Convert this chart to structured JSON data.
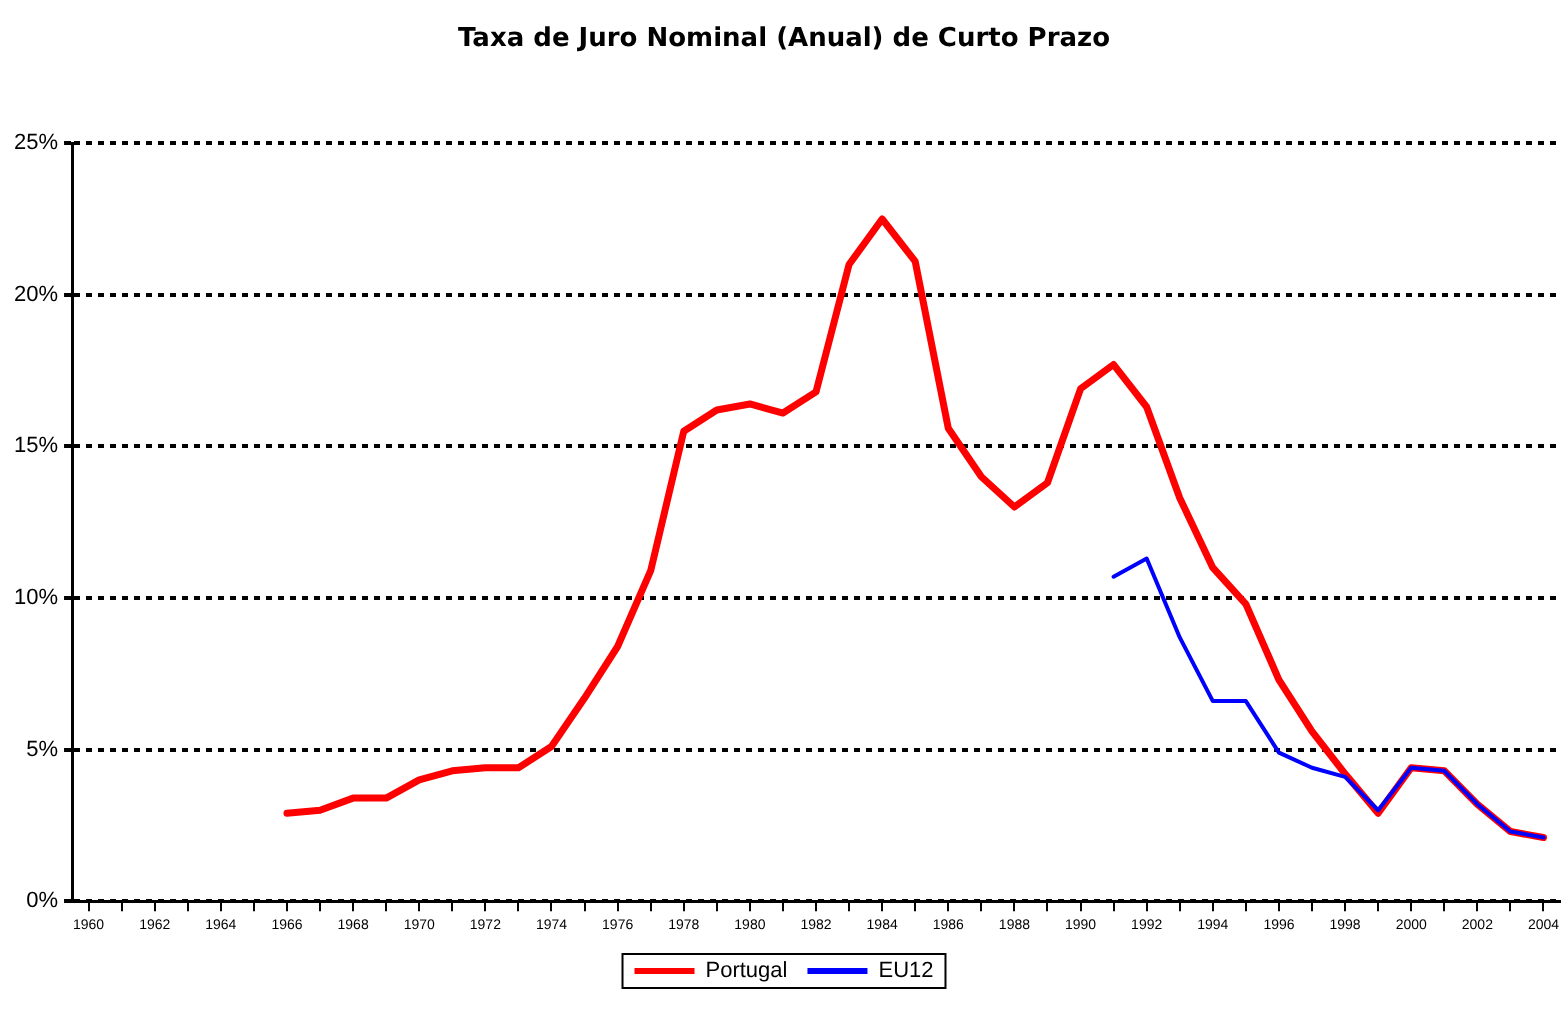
{
  "chart_data": {
    "type": "line",
    "title": "Taxa de Juro Nominal (Anual) de Curto Prazo",
    "series": [
      {
        "name": "Portugal",
        "color": "#ff0000",
        "x": [
          1966,
          1967,
          1968,
          1969,
          1970,
          1971,
          1972,
          1973,
          1974,
          1975,
          1976,
          1977,
          1978,
          1979,
          1980,
          1981,
          1982,
          1983,
          1984,
          1985,
          1986,
          1987,
          1988,
          1989,
          1990,
          1991,
          1992,
          1993,
          1994,
          1995,
          1996,
          1997,
          1998,
          1999,
          2000,
          2001,
          2002,
          2003,
          2004
        ],
        "values": [
          2.9,
          3.0,
          3.4,
          3.4,
          4.0,
          4.3,
          4.4,
          4.4,
          5.1,
          6.7,
          8.4,
          10.9,
          15.5,
          16.2,
          16.4,
          16.1,
          16.8,
          21.0,
          22.5,
          21.1,
          15.6,
          14.0,
          13.0,
          13.8,
          16.9,
          17.7,
          16.3,
          13.3,
          11.0,
          9.8,
          7.3,
          5.6,
          4.2,
          2.9,
          4.4,
          4.3,
          3.2,
          2.3,
          2.1
        ]
      },
      {
        "name": "EU12",
        "color": "#0000ff",
        "x": [
          1991,
          1992,
          1993,
          1994,
          1995,
          1996,
          1997,
          1998,
          1999,
          2000,
          2001,
          2002,
          2003,
          2004
        ],
        "values": [
          10.7,
          11.3,
          8.7,
          6.6,
          6.6,
          4.9,
          4.4,
          4.1,
          3.0,
          4.4,
          4.3,
          3.2,
          2.3,
          2.1
        ]
      }
    ],
    "xlim": [
      1959.5,
      2004.5
    ],
    "xticks": [
      1960,
      {
        "value": 1961,
        "label": null
      },
      1962,
      {
        "value": 1963,
        "label": null
      },
      1964,
      {
        "value": 1965,
        "label": null
      },
      1966,
      {
        "value": 1967,
        "label": null
      },
      1968,
      {
        "value": 1969,
        "label": null
      },
      1970,
      {
        "value": 1971,
        "label": null
      },
      1972,
      {
        "value": 1973,
        "label": null
      },
      1974,
      {
        "value": 1975,
        "label": null
      },
      1976,
      {
        "value": 1977,
        "label": null
      },
      1978,
      {
        "value": 1979,
        "label": null
      },
      1980,
      {
        "value": 1981,
        "label": null
      },
      1982,
      {
        "value": 1983,
        "label": null
      },
      1984,
      {
        "value": 1985,
        "label": null
      },
      1986,
      {
        "value": 1987,
        "label": null
      },
      1988,
      {
        "value": 1989,
        "label": null
      },
      1990,
      {
        "value": 1991,
        "label": null
      },
      1992,
      {
        "value": 1993,
        "label": null
      },
      1994,
      {
        "value": 1995,
        "label": null
      },
      1996,
      {
        "value": 1997,
        "label": null
      },
      1998,
      {
        "value": 1999,
        "label": null
      },
      2000,
      {
        "value": 2001,
        "label": null
      },
      2002,
      {
        "value": 2003,
        "label": null
      },
      2004
    ],
    "ylim": [
      0,
      25
    ],
    "yticks": [
      {
        "value": 0,
        "label": "0%"
      },
      {
        "value": 5,
        "label": "5%"
      },
      {
        "value": 10,
        "label": "10%"
      },
      {
        "value": 15,
        "label": "15%"
      },
      {
        "value": 20,
        "label": "20%"
      },
      {
        "value": 25,
        "label": "25%"
      }
    ],
    "grid": "y",
    "legend": "bottom",
    "marker": "none",
    "line_style": "solid"
  }
}
